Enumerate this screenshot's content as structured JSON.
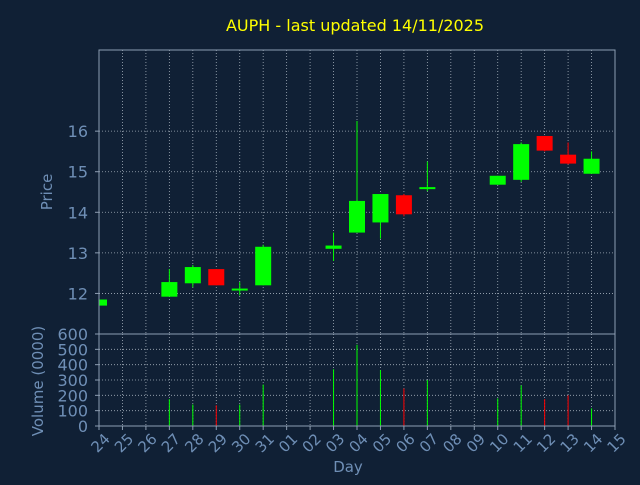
{
  "colors": {
    "background": "#102035",
    "title": "#FFFF00",
    "axis_text": "#6F8FB6",
    "frame": "#8D9EB2",
    "grid": "#C8D2DC",
    "up": "#00FF00",
    "down": "#FF0000"
  },
  "chart_data": [
    {
      "type": "candlestick",
      "title": "AUPH - last updated 14/11/2025",
      "ylabel": "Price",
      "ylim": [
        11.0,
        18.0
      ],
      "yticks": [
        12,
        13,
        14,
        15,
        16
      ],
      "grid": true,
      "categories": [
        "24",
        "25",
        "26",
        "27",
        "28",
        "29",
        "30",
        "31",
        "01",
        "02",
        "03",
        "04",
        "05",
        "06",
        "07",
        "08",
        "09",
        "10",
        "11",
        "12",
        "13",
        "14",
        "15"
      ],
      "candles": [
        {
          "x": "24",
          "open": 11.7,
          "high": 11.85,
          "low": 11.7,
          "close": 11.85
        },
        {
          "x": "27",
          "open": 11.92,
          "high": 12.6,
          "low": 11.92,
          "close": 12.28
        },
        {
          "x": "28",
          "open": 12.25,
          "high": 12.7,
          "low": 12.15,
          "close": 12.65
        },
        {
          "x": "29",
          "open": 12.6,
          "high": 12.6,
          "low": 12.2,
          "close": 12.2
        },
        {
          "x": "30",
          "open": 12.08,
          "high": 12.28,
          "low": 11.95,
          "close": 12.12
        },
        {
          "x": "31",
          "open": 12.2,
          "high": 13.2,
          "low": 12.2,
          "close": 13.15
        },
        {
          "x": "03",
          "open": 13.1,
          "high": 13.5,
          "low": 12.8,
          "close": 13.18
        },
        {
          "x": "04",
          "open": 13.5,
          "high": 16.25,
          "low": 13.5,
          "close": 14.28
        },
        {
          "x": "05",
          "open": 13.75,
          "high": 14.45,
          "low": 13.35,
          "close": 14.45
        },
        {
          "x": "06",
          "open": 14.42,
          "high": 14.45,
          "low": 13.9,
          "close": 13.95
        },
        {
          "x": "07",
          "open": 14.58,
          "high": 15.25,
          "low": 14.52,
          "close": 14.62
        },
        {
          "x": "10",
          "open": 14.68,
          "high": 14.9,
          "low": 14.68,
          "close": 14.9
        },
        {
          "x": "11",
          "open": 14.8,
          "high": 15.72,
          "low": 14.75,
          "close": 15.68
        },
        {
          "x": "12",
          "open": 15.88,
          "high": 15.88,
          "low": 15.5,
          "close": 15.52
        },
        {
          "x": "13",
          "open": 15.42,
          "high": 15.72,
          "low": 15.18,
          "close": 15.2
        },
        {
          "x": "14",
          "open": 14.95,
          "high": 15.5,
          "low": 14.95,
          "close": 15.32
        }
      ]
    },
    {
      "type": "bar",
      "ylabel": "Volume (0000)",
      "xlabel": "Day",
      "ylim": [
        0,
        600
      ],
      "yticks": [
        0,
        100,
        200,
        300,
        400,
        500,
        600
      ],
      "grid": true,
      "categories": [
        "24",
        "25",
        "26",
        "27",
        "28",
        "29",
        "30",
        "31",
        "01",
        "02",
        "03",
        "04",
        "05",
        "06",
        "07",
        "08",
        "09",
        "10",
        "11",
        "12",
        "13",
        "14",
        "15"
      ],
      "bars": [
        {
          "x": "24",
          "value": 10,
          "dir": "up"
        },
        {
          "x": "27",
          "value": 175,
          "dir": "up"
        },
        {
          "x": "28",
          "value": 140,
          "dir": "up"
        },
        {
          "x": "29",
          "value": 135,
          "dir": "down"
        },
        {
          "x": "30",
          "value": 140,
          "dir": "up"
        },
        {
          "x": "31",
          "value": 270,
          "dir": "up"
        },
        {
          "x": "03",
          "value": 370,
          "dir": "up"
        },
        {
          "x": "04",
          "value": 530,
          "dir": "up"
        },
        {
          "x": "05",
          "value": 365,
          "dir": "up"
        },
        {
          "x": "06",
          "value": 245,
          "dir": "down"
        },
        {
          "x": "07",
          "value": 300,
          "dir": "up"
        },
        {
          "x": "10",
          "value": 180,
          "dir": "up"
        },
        {
          "x": "11",
          "value": 265,
          "dir": "up"
        },
        {
          "x": "12",
          "value": 175,
          "dir": "down"
        },
        {
          "x": "13",
          "value": 200,
          "dir": "down"
        },
        {
          "x": "14",
          "value": 115,
          "dir": "up"
        }
      ]
    }
  ]
}
